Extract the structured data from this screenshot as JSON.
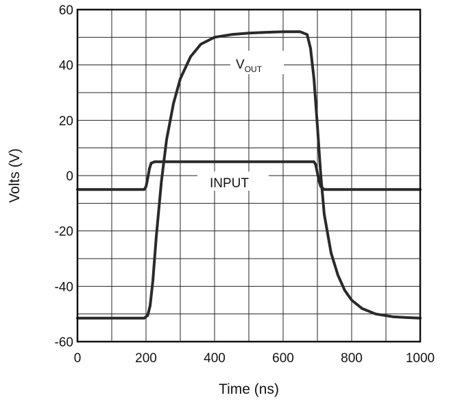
{
  "chart_data": {
    "type": "line",
    "title": "",
    "xlabel": "Time (ns)",
    "ylabel": "Volts (V)",
    "xlim": [
      0,
      1000
    ],
    "ylim": [
      -60,
      60
    ],
    "xticks": [
      0,
      100,
      200,
      300,
      400,
      500,
      600,
      700,
      800,
      900,
      1000
    ],
    "yticks": [
      -60,
      -50,
      -40,
      -30,
      -20,
      -10,
      0,
      10,
      20,
      30,
      40,
      50,
      60
    ],
    "xtick_labels": [
      "0",
      "200",
      "400",
      "600",
      "800",
      "1000"
    ],
    "ytick_labels": [
      "-60",
      "-40",
      "-20",
      "0",
      "20",
      "40",
      "60"
    ],
    "grid": true,
    "legend": "none",
    "annotations": {
      "vout": {
        "main": "V",
        "sub": "OUT"
      },
      "input": "INPUT"
    },
    "series": [
      {
        "id": "vout",
        "x": [
          0,
          100,
          195,
          205,
          212,
          220,
          230,
          245,
          260,
          280,
          300,
          330,
          360,
          400,
          450,
          500,
          550,
          600,
          650,
          670,
          680,
          690,
          700,
          710,
          720,
          740,
          760,
          780,
          800,
          830,
          870,
          920,
          960,
          1000
        ],
        "y": [
          -51.5,
          -51.5,
          -51.5,
          -50.5,
          -47,
          -38,
          -22,
          -2,
          13,
          26,
          35,
          43,
          47.5,
          50,
          51,
          51.5,
          51.8,
          52,
          52,
          51,
          46,
          35,
          18,
          0,
          -14,
          -28,
          -36,
          -41.5,
          -45,
          -48,
          -50,
          -51,
          -51.3,
          -51.5
        ]
      },
      {
        "id": "input",
        "x": [
          0,
          100,
          195,
          200,
          205,
          210,
          215,
          225,
          300,
          400,
          500,
          600,
          690,
          695,
          700,
          705,
          710,
          720,
          800,
          900,
          1000
        ],
        "y": [
          -5,
          -5,
          -5,
          -4,
          -1,
          2.5,
          4.5,
          5,
          5,
          5,
          5,
          5,
          5,
          4,
          1,
          -2,
          -4,
          -5,
          -5,
          -5,
          -5
        ]
      }
    ]
  }
}
